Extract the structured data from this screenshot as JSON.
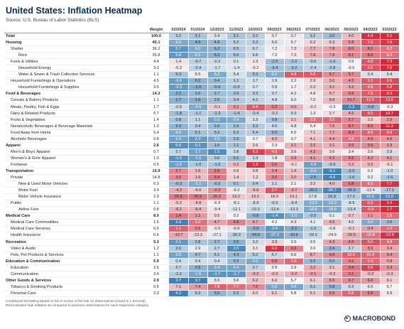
{
  "title": "United States: Inflation Heatmap",
  "source": "Source: U.S. Bureau of Labor Statistics (BLS)",
  "footnote_1": "Conditional formatting based on the Z scores of the last 12 observations (round to 1 decimal)",
  "footnote_2": "Red indicates high inflation as compared to previous observations for each respective category",
  "logo_text": "MACROBOND",
  "colors": {
    "low": "#3f82b7",
    "neutral": "#f5f5f5",
    "high": "#d7283a",
    "title": "#0b2a4a"
  },
  "chart_data": {
    "type": "heatmap",
    "title": "United States: Inflation Heatmap",
    "weight_label": "Weight",
    "columns": [
      "02/2024",
      "01/2024",
      "12/2023",
      "11/2023",
      "10/2023",
      "09/2023",
      "08/2023",
      "07/2023",
      "06/2023",
      "05/2023",
      "04/2023",
      "03/2023"
    ],
    "rows": [
      {
        "name": "Total",
        "level": 0,
        "weight": "100.0",
        "values": [
          3.2,
          3.1,
          3.4,
          3.1,
          3.2,
          3.7,
          3.7,
          3.2,
          3.0,
          4.0,
          4.9,
          5.0
        ]
      },
      {
        "name": "Housing",
        "level": 0,
        "weight": "45.1",
        "values": [
          4.5,
          4.6,
          4.8,
          5.2,
          5.2,
          5.6,
          5.7,
          6.2,
          6.3,
          6.8,
          7.5,
          7.8
        ]
      },
      {
        "name": "Shelter",
        "level": 1,
        "weight": "36.2",
        "values": [
          5.7,
          6.0,
          6.2,
          6.5,
          6.7,
          7.2,
          7.3,
          7.7,
          7.8,
          8.0,
          8.1,
          8.2
        ]
      },
      {
        "name": "Rent",
        "level": 2,
        "weight": "35.8",
        "values": [
          5.8,
          6.1,
          6.2,
          6.5,
          6.8,
          7.2,
          7.3,
          7.8,
          7.9,
          8.1,
          8.2,
          8.3
        ]
      },
      {
        "name": "Fuels & Utilities",
        "level": 1,
        "weight": "4.4",
        "values": [
          1.4,
          -0.7,
          -0.2,
          0.1,
          1.3,
          -1.5,
          -1.2,
          -0.6,
          -1.0,
          0.9,
          4.8,
          7.3
        ]
      },
      {
        "name": "Household Energy",
        "level": 2,
        "weight": "3.3",
        "values": [
          -0.2,
          -2.4,
          -1.7,
          -1.4,
          -0.2,
          -3.4,
          -3.2,
          -2.4,
          -2.8,
          -0.5,
          4.5,
          7.6
        ]
      },
      {
        "name": "Water & Sewer & Trash Collection Services",
        "level": 2,
        "weight": "1.1",
        "values": [
          5.3,
          5.5,
          5.2,
          5.4,
          5.3,
          5.2,
          5.8,
          5.8,
          5.7,
          5.7,
          5.4,
          5.4
        ]
      },
      {
        "name": "Household Furnishings & Operations",
        "level": 1,
        "weight": "4.5",
        "values": [
          -0.6,
          0.2,
          0.4,
          1.1,
          1.7,
          1.9,
          2.2,
          2.9,
          3.6,
          4.2,
          5.3,
          5.6
        ]
      },
      {
        "name": "Household Furnishings & Supplies",
        "level": 2,
        "weight": "3.5",
        "values": [
          -2.3,
          -1.5,
          -0.9,
          -0.3,
          0.7,
          0.9,
          1.7,
          2.2,
          3.1,
          3.3,
          4.8,
          5.8
        ]
      },
      {
        "name": "Food & Beverages",
        "level": 0,
        "weight": "14.3",
        "values": [
          2.2,
          2.6,
          2.7,
          2.9,
          3.3,
          3.7,
          4.2,
          4.8,
          5.7,
          6.6,
          7.5,
          8.3
        ]
      },
      {
        "name": "Cereals & Bakery Products",
        "level": 1,
        "weight": "1.1",
        "values": [
          1.7,
          1.5,
          2.6,
          3.4,
          4.2,
          4.8,
          6.0,
          7.0,
          8.8,
          10.7,
          12.6,
          13.6
        ]
      },
      {
        "name": "Meats, Poultry, Fish & Eggs",
        "level": 1,
        "weight": "1.7",
        "values": [
          -0.5,
          -0.9,
          -0.1,
          0.1,
          0.4,
          0.2,
          0.0,
          -0.2,
          -0.3,
          -1.2,
          -0.8,
          -0.3
        ]
      },
      {
        "name": "Dairy & Related Products",
        "level": 1,
        "weight": "0.7",
        "values": [
          -1.8,
          -1.1,
          -1.3,
          -1.4,
          -0.4,
          -0.2,
          0.3,
          1.3,
          2.7,
          4.6,
          8.0,
          10.7
        ]
      },
      {
        "name": "Fruits & Vegetables",
        "level": 1,
        "weight": "1.4",
        "values": [
          0.8,
          1.1,
          0.3,
          0.4,
          1.3,
          0.8,
          2.1,
          2.9,
          3.0,
          2.7,
          2.0,
          2.5
        ]
      },
      {
        "name": "Nonalcoholic Beverages & Beverage Materials",
        "level": 1,
        "weight": "1.0",
        "values": [
          2.3,
          3.4,
          2.6,
          2.9,
          3.3,
          4.0,
          4.8,
          5.4,
          7.6,
          8.7,
          8.5,
          11.3
        ]
      },
      {
        "name": "Food Away from Home",
        "level": 1,
        "weight": "5.4",
        "values": [
          4.5,
          5.1,
          5.2,
          5.3,
          5.4,
          5.0,
          6.5,
          7.1,
          7.7,
          8.3,
          8.6,
          8.8
        ]
      },
      {
        "name": "Alcoholic Beverages",
        "level": 1,
        "weight": "0.8",
        "values": [
          2.4,
          2.3,
          2.5,
          2.9,
          3.7,
          4.2,
          3.7,
          4.1,
          4.4,
          4.8,
          4.6,
          4.5
        ]
      },
      {
        "name": "Apparel",
        "level": 0,
        "weight": "2.6",
        "values": [
          0.0,
          0.1,
          1.0,
          1.1,
          2.6,
          2.3,
          3.1,
          3.2,
          3.1,
          3.5,
          3.6,
          3.3
        ]
      },
      {
        "name": "Men's & Boys' Apparel",
        "level": 1,
        "weight": "0.7",
        "values": [
          2.7,
          1.7,
          1.3,
          2.8,
          5.3,
          4.9,
          3.6,
          4.3,
          3.6,
          3.4,
          3.5,
          2.9
        ]
      },
      {
        "name": "Women's & Girls' Apparel",
        "level": 1,
        "weight": "1.0",
        "values": [
          -1.5,
          -1.0,
          0.6,
          0.1,
          1.3,
          1.8,
          3.9,
          4.1,
          4.2,
          4.6,
          4.2,
          4.1
        ]
      },
      {
        "name": "Footwear",
        "level": 1,
        "weight": "0.5",
        "values": [
          -1.6,
          -1.0,
          -1.0,
          0.2,
          1.3,
          0.6,
          -0.1,
          -1.6,
          -0.9,
          0.2,
          0.2,
          -0.1
        ]
      },
      {
        "name": "Transportation",
        "level": 0,
        "weight": "15.9",
        "values": [
          2.7,
          1.6,
          2.9,
          0.9,
          0.8,
          2.4,
          1.4,
          -3.0,
          -5.1,
          -2.0,
          0.2,
          -1.0
        ]
      },
      {
        "name": "Private",
        "level": 1,
        "weight": "14.8",
        "values": [
          3.0,
          1.9,
          3.4,
          1.4,
          1.2,
          3.0,
          2.0,
          -2.5,
          -4.6,
          -1.6,
          0.2,
          -1.6
        ]
      },
      {
        "name": "New & Used Motor Vehicles",
        "level": 2,
        "weight": "6.3",
        "values": [
          -0.3,
          -1.1,
          -0.2,
          0.1,
          0.4,
          1.1,
          2.1,
          3.3,
          4.0,
          5.8,
          6.0,
          7.7
        ]
      },
      {
        "name": "Motor Fuel",
        "level": 2,
        "weight": "3.4",
        "values": [
          -4.2,
          -6.6,
          -2.3,
          -9.2,
          -5.6,
          2.7,
          -3.7,
          -20.2,
          -26.7,
          -20.0,
          -12.4,
          -17.3
        ]
      },
      {
        "name": "Motor Vehicle Insurance",
        "level": 2,
        "weight": "2.9",
        "values": [
          20.6,
          20.6,
          20.3,
          19.2,
          19.2,
          18.9,
          19.1,
          17.8,
          16.9,
          17.1,
          15.5,
          15.0
        ]
      },
      {
        "name": "Public",
        "level": 1,
        "weight": "1.1",
        "values": [
          -5.2,
          -4.8,
          -6.9,
          -8.1,
          -8.9,
          -9.3,
          -9.4,
          -13.2,
          -13.3,
          -8.9,
          0.3,
          3.4
        ]
      },
      {
        "name": "Airline Fare",
        "level": 2,
        "weight": "0.8",
        "values": [
          -6.1,
          -6.4,
          -9.4,
          -12.1,
          -13.2,
          -13.4,
          -13.3,
          -18.6,
          -18.9,
          -13.4,
          -0.9,
          1.7
        ]
      },
      {
        "name": "Medical Care",
        "level": 0,
        "weight": "8.0",
        "values": [
          1.4,
          1.1,
          0.5,
          0.2,
          -0.8,
          -1.4,
          -1.0,
          -0.5,
          0.1,
          0.7,
          1.1,
          1.5
        ]
      },
      {
        "name": "Medical Care Commodities",
        "level": 1,
        "weight": "1.5",
        "values": [
          2.9,
          5.0,
          4.7,
          4.9,
          4.7,
          4.2,
          4.3,
          4.1,
          4.6,
          4.0,
          3.4,
          3.6
        ]
      },
      {
        "name": "Medical Care Services",
        "level": 1,
        "weight": "6.5",
        "values": [
          1.1,
          0.6,
          -0.5,
          -0.9,
          -2.0,
          -2.6,
          -2.1,
          -1.5,
          -0.8,
          -0.1,
          0.4,
          1.0
        ]
      },
      {
        "name": "Health Insurance",
        "level": 1,
        "weight": "0.6",
        "values": [
          -19.7,
          -23.3,
          -27.1,
          -30.3,
          -34.0,
          -37.3,
          -33.6,
          -29.5,
          -24.9,
          -20.5,
          -15.8,
          -10.9
        ]
      },
      {
        "name": "Recreation",
        "level": 0,
        "weight": "5.3",
        "values": [
          2.1,
          2.8,
          2.7,
          2.5,
          3.2,
          3.9,
          3.5,
          3.5,
          4.3,
          4.5,
          5.0,
          4.8
        ]
      },
      {
        "name": "Video & Audio",
        "level": 1,
        "weight": "1.2",
        "values": [
          2.6,
          2.9,
          2.7,
          2.0,
          3.1,
          4.0,
          3.6,
          3.0,
          2.4,
          2.7,
          3.5,
          3.4
        ]
      },
      {
        "name": "Pets, Pet Products & Services",
        "level": 1,
        "weight": "1.1",
        "values": [
          3.5,
          4.7,
          5.1,
          4.3,
          5.2,
          5.7,
          6.6,
          8.7,
          9.6,
          10.5,
          10.4,
          9.4
        ]
      },
      {
        "name": "Education & Communication",
        "level": 0,
        "weight": "5.9",
        "values": [
          0.4,
          0.4,
          0.4,
          0.2,
          0.1,
          0.9,
          1.0,
          0.2,
          0.2,
          0.9,
          1.0,
          0.8
        ]
      },
      {
        "name": "Education",
        "level": 1,
        "weight": "2.5",
        "values": [
          2.7,
          2.5,
          2.4,
          2.4,
          2.7,
          2.9,
          2.9,
          3.2,
          3.1,
          3.4,
          3.6,
          3.3
        ]
      },
      {
        "name": "Communication",
        "level": 1,
        "weight": "3.4",
        "values": [
          -1.1,
          -1.5,
          -1.7,
          -1.7,
          -0.2,
          -0.3,
          -0.2,
          -0.1,
          -0.3,
          0.1,
          -0.3,
          -0.3
        ]
      },
      {
        "name": "Other Goods & Services",
        "level": 0,
        "weight": "2.9",
        "values": [
          3.7,
          3.7,
          5.5,
          5.6,
          6.2,
          6.0,
          5.7,
          6.1,
          6.5,
          6.7,
          6.6,
          6.1
        ]
      },
      {
        "name": "Tobacco & Smoking Products",
        "level": 1,
        "weight": "0.5",
        "values": [
          7.1,
          7.4,
          7.8,
          7.7,
          7.5,
          5.6,
          5.6,
          6.1,
          5.8,
          6.3,
          6.5,
          6.7
        ]
      },
      {
        "name": "Personal Care",
        "level": 1,
        "weight": "2.3",
        "values": [
          4.2,
          5.3,
          5.0,
          5.2,
          6.0,
          6.1,
          5.8,
          6.1,
          6.5,
          6.8,
          6.6,
          5.9
        ]
      }
    ]
  }
}
